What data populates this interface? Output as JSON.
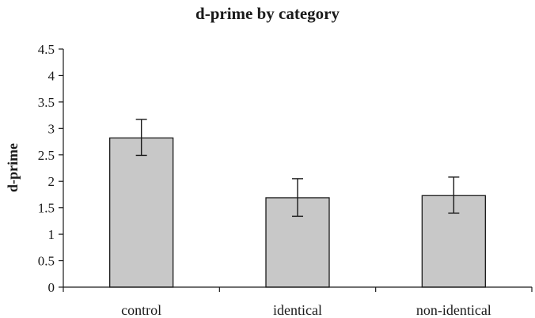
{
  "chart_data": {
    "type": "bar",
    "title": "d-prime by category",
    "xlabel": "",
    "ylabel": "d-prime",
    "categories": [
      "control",
      "identical",
      "non-identical"
    ],
    "values": [
      2.82,
      1.69,
      1.73
    ],
    "error": [
      {
        "low": 2.49,
        "high": 3.17
      },
      {
        "low": 1.34,
        "high": 2.05
      },
      {
        "low": 1.4,
        "high": 2.08
      }
    ],
    "ylim": [
      0,
      4.5
    ],
    "yticks": [
      "0",
      "0.5",
      "1",
      "1.5",
      "2",
      "2.5",
      "3",
      "3.5",
      "4",
      "4.5"
    ],
    "grid": false,
    "legend": "none",
    "bar_color": "#c8c8c8"
  }
}
